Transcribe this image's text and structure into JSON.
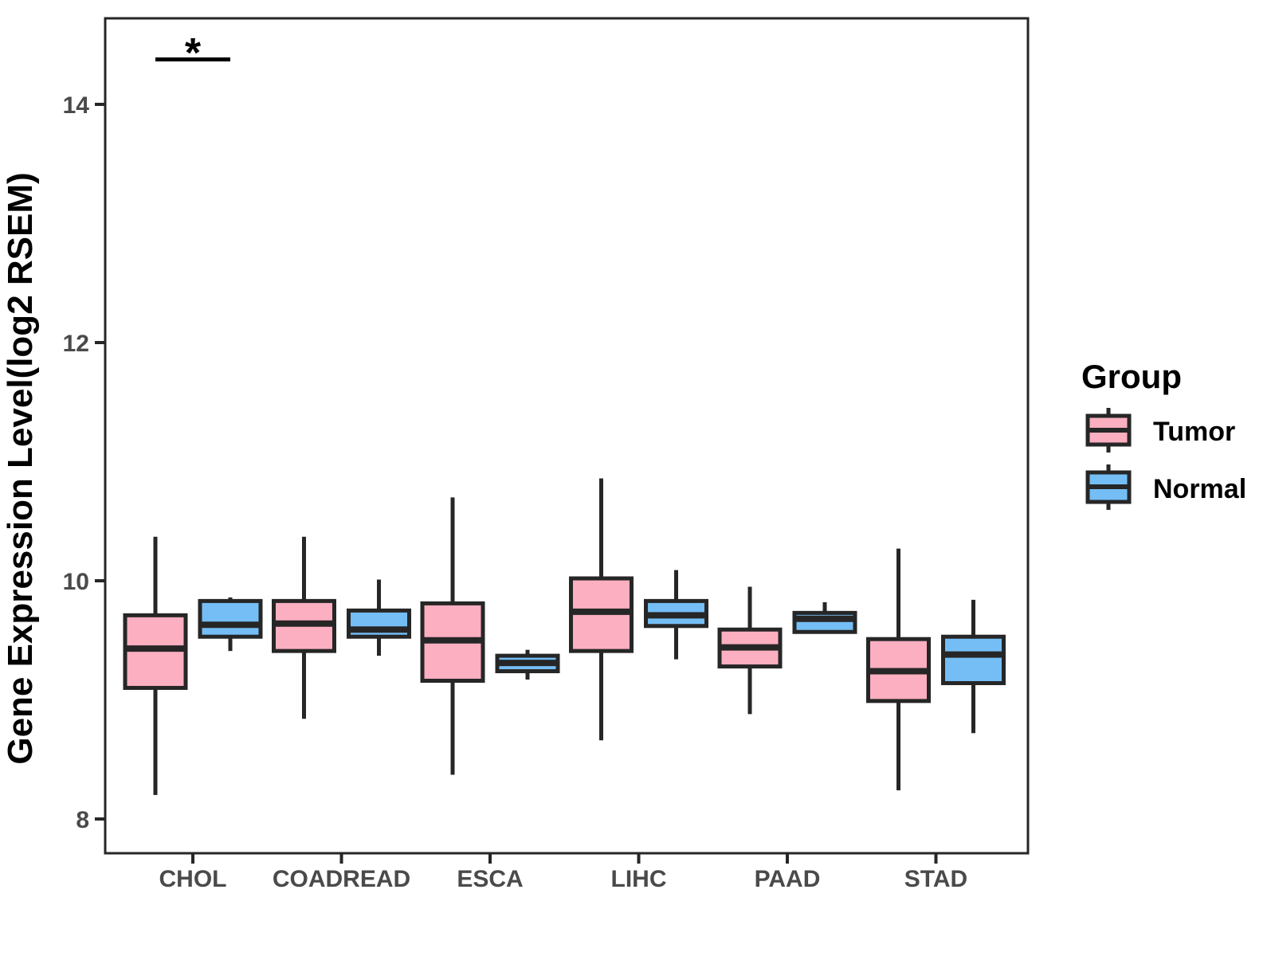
{
  "chart_data": {
    "type": "boxplot",
    "title": "",
    "xlabel": "",
    "ylabel": "Gene Expression Level(log2 RSEM)",
    "categories": [
      "CHOL",
      "COADREAD",
      "ESCA",
      "LIHC",
      "PAAD",
      "STAD"
    ],
    "yticks": [
      8,
      10,
      12,
      14
    ],
    "ylim": [
      7.7,
      14.7
    ],
    "grid": false,
    "legend": {
      "title": "Group",
      "position": "right",
      "entries": [
        "Tumor",
        "Normal"
      ]
    },
    "colors": {
      "tumor_fill": "#FBAFC0",
      "normal_fill": "#74BEF5",
      "box_stroke": "#262626",
      "axis_text": "#4A4A4A",
      "panel_border": "#262626"
    },
    "series": [
      {
        "name": "Tumor",
        "fill": "#FBAFC0",
        "boxes": [
          {
            "category": "CHOL",
            "low": 8.2,
            "q1": 9.1,
            "median": 9.43,
            "q3": 9.71,
            "high": 10.37
          },
          {
            "category": "COADREAD",
            "low": 8.84,
            "q1": 9.41,
            "median": 9.64,
            "q3": 9.83,
            "high": 10.37
          },
          {
            "category": "ESCA",
            "low": 8.37,
            "q1": 9.16,
            "median": 9.5,
            "q3": 9.81,
            "high": 10.7
          },
          {
            "category": "LIHC",
            "low": 8.66,
            "q1": 9.41,
            "median": 9.74,
            "q3": 10.02,
            "high": 10.86
          },
          {
            "category": "PAAD",
            "low": 8.88,
            "q1": 9.28,
            "median": 9.44,
            "q3": 9.59,
            "high": 9.95
          },
          {
            "category": "STAD",
            "low": 8.24,
            "q1": 8.99,
            "median": 9.24,
            "q3": 9.51,
            "high": 10.27
          }
        ]
      },
      {
        "name": "Normal",
        "fill": "#74BEF5",
        "boxes": [
          {
            "category": "CHOL",
            "low": 9.41,
            "q1": 9.53,
            "median": 9.63,
            "q3": 9.83,
            "high": 9.86
          },
          {
            "category": "COADREAD",
            "low": 9.37,
            "q1": 9.53,
            "median": 9.59,
            "q3": 9.75,
            "high": 10.01
          },
          {
            "category": "ESCA",
            "low": 9.17,
            "q1": 9.24,
            "median": 9.31,
            "q3": 9.37,
            "high": 9.42
          },
          {
            "category": "LIHC",
            "low": 9.34,
            "q1": 9.62,
            "median": 9.71,
            "q3": 9.83,
            "high": 10.09
          },
          {
            "category": "PAAD",
            "low": 9.57,
            "q1": 9.57,
            "median": 9.68,
            "q3": 9.73,
            "high": 9.82
          },
          {
            "category": "STAD",
            "low": 8.72,
            "q1": 9.14,
            "median": 9.38,
            "q3": 9.53,
            "high": 9.84
          }
        ]
      }
    ],
    "annotation": {
      "text": "*",
      "category": "CHOL",
      "line_y": 14.38
    }
  }
}
